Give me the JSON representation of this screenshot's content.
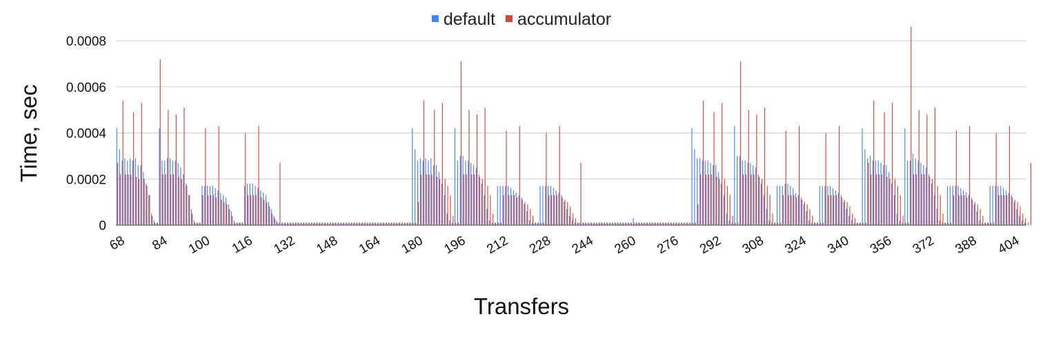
{
  "chart_data": {
    "type": "bar",
    "title": "",
    "xlabel": "Transfers",
    "ylabel": "Time, sec",
    "ylim": [
      0,
      0.0008
    ],
    "ytick_labels": [
      "0",
      "0.0002",
      "0.0004",
      "0.0006",
      "0.0008"
    ],
    "x_start": 68,
    "x_end": 417,
    "xtick_labels": [
      "68",
      "84",
      "100",
      "116",
      "132",
      "148",
      "164",
      "180",
      "196",
      "212",
      "228",
      "244",
      "260",
      "276",
      "292",
      "308",
      "324",
      "340",
      "356",
      "372",
      "388",
      "404"
    ],
    "grid": true,
    "legend_position": "top",
    "colors": {
      "default": "#4285f4",
      "accumulator": "#db4437"
    },
    "series": [
      {
        "name": "default",
        "values": [
          0.00042,
          0.00033,
          0.00028,
          0.00029,
          0.00028,
          0.00029,
          0.00028,
          0.00029,
          0.00026,
          0.00026,
          0.00023,
          0.00018,
          0.00013,
          5e-05,
          2e-05,
          1e-05,
          0.00042,
          0.00028,
          0.00028,
          0.00029,
          0.00029,
          0.00028,
          0.00028,
          0.00027,
          0.00025,
          0.00022,
          0.00018,
          0.00013,
          7e-05,
          2e-05,
          1e-05,
          1e-05,
          0.00017,
          0.00017,
          0.00017,
          0.00017,
          0.00017,
          0.00016,
          0.00015,
          0.00014,
          0.00013,
          0.00012,
          9e-05,
          6e-05,
          2e-05,
          1e-05,
          1e-05,
          1e-05,
          0.00017,
          0.00018,
          0.00018,
          0.00018,
          0.00017,
          0.00016,
          0.00015,
          0.00014,
          0.00013,
          0.0001,
          7e-05,
          4e-05,
          2e-05,
          1e-05,
          1e-05,
          1e-05,
          1e-05,
          1e-05,
          1e-05,
          1e-05,
          1e-05,
          1e-05,
          1e-05,
          1e-05,
          1e-05,
          1e-05,
          1e-05,
          1e-05,
          1e-05,
          1e-05,
          1e-05,
          1e-05,
          1e-05,
          1e-05,
          1e-05,
          1e-05,
          1e-05,
          1e-05,
          1e-05,
          1e-05,
          1e-05,
          1e-05,
          1e-05,
          1e-05,
          1e-05,
          1e-05,
          1e-05,
          1e-05,
          1e-05,
          1e-05,
          1e-05,
          1e-05,
          1e-05,
          1e-05,
          1e-05,
          1e-05,
          1e-05,
          1e-05,
          1e-05,
          1e-05,
          1e-05,
          1e-05,
          1e-05,
          0.00042,
          0.00033,
          0.00028,
          0.00029,
          0.00028,
          0.00029,
          0.00028,
          0.00029,
          0.00026,
          0.00026,
          0.00023,
          0.00018,
          0.00013,
          5e-05,
          2e-05,
          1e-05,
          0.00042,
          0.00028,
          0.0003,
          0.0003,
          0.00028,
          0.00028,
          0.00027,
          0.00026,
          0.00025,
          0.00022,
          0.00018,
          0.00013,
          7e-05,
          2e-05,
          1e-05,
          1e-05,
          0.00017,
          0.00017,
          0.00017,
          0.00017,
          0.00017,
          0.00016,
          0.00015,
          0.00014,
          0.00013,
          0.00012,
          9e-05,
          6e-05,
          2e-05,
          1e-05,
          1e-05,
          1e-05,
          0.00017,
          0.00017,
          0.00017,
          0.00017,
          0.00017,
          0.00016,
          0.00015,
          0.00014,
          0.00013,
          0.0001,
          7e-05,
          4e-05,
          2e-05,
          1e-05,
          1e-05,
          1e-05,
          1e-05,
          1e-05,
          1e-05,
          1e-05,
          1e-05,
          1e-05,
          1e-05,
          1e-05,
          1e-05,
          1e-05,
          1e-05,
          1e-05,
          1e-05,
          1e-05,
          1e-05,
          1e-05,
          1e-05,
          1e-05,
          1e-05,
          3e-05,
          1e-05,
          1e-05,
          1e-05,
          1e-05,
          1e-05,
          1e-05,
          1e-05,
          1e-05,
          1e-05,
          1e-05,
          1e-05,
          1e-05,
          1e-05,
          1e-05,
          1e-05,
          1e-05,
          1e-05,
          1e-05,
          1e-05,
          1e-05,
          1e-05,
          0.00042,
          0.00033,
          0.00029,
          0.00029,
          0.00028,
          0.00028,
          0.00028,
          0.00027,
          0.00026,
          0.00026,
          0.00023,
          0.00018,
          0.00013,
          5e-05,
          2e-05,
          1e-05,
          0.00043,
          0.0003,
          0.0003,
          0.00028,
          0.00028,
          0.00027,
          0.00027,
          0.00026,
          0.00025,
          0.00022,
          0.00018,
          0.00013,
          7e-05,
          2e-05,
          1e-05,
          1e-05,
          0.00017,
          0.00017,
          0.00017,
          0.00018,
          0.00018,
          0.00017,
          0.00016,
          0.00014,
          0.00013,
          0.00012,
          9e-05,
          6e-05,
          2e-05,
          1e-05,
          1e-05,
          1e-05,
          0.00017,
          0.00017,
          0.00017,
          0.00017,
          0.00017,
          0.00016,
          0.00015,
          0.00014,
          0.00013,
          0.0001,
          7e-05,
          4e-05,
          2e-05,
          1e-05,
          1e-05,
          1e-05,
          0.00042,
          0.00033,
          0.00029,
          0.0003,
          0.00028,
          0.00028,
          0.00028,
          0.00027,
          0.00026,
          0.00026,
          0.00023,
          0.00018,
          0.00013,
          5e-05,
          2e-05,
          1e-05,
          0.00042,
          0.00028,
          0.00028,
          0.00031,
          0.00029,
          0.00028,
          0.00027,
          0.00026,
          0.00025,
          0.00022,
          0.00018,
          0.00013,
          7e-05,
          2e-05,
          1e-05,
          1e-05,
          0.00017,
          0.00017,
          0.00017,
          0.00017,
          0.00017,
          0.00016,
          0.00015,
          0.00014,
          0.00013,
          0.00012,
          9e-05,
          6e-05,
          2e-05,
          1e-05,
          1e-05,
          1e-05,
          0.00017,
          0.00017,
          0.00017,
          0.00017,
          0.00017,
          0.00016,
          0.00015,
          0.00014,
          0.00013,
          0.0001,
          7e-05,
          4e-05,
          2e-05,
          1e-05
        ]
      },
      {
        "name": "accumulator",
        "values": [
          0.00027,
          0.00022,
          0.00054,
          0.00022,
          0.00022,
          0.00022,
          0.00049,
          0.00021,
          0.0002,
          0.00053,
          0.0002,
          0.00017,
          0.00013,
          4e-05,
          1e-05,
          1e-05,
          0.00072,
          0.00022,
          0.00022,
          0.0005,
          0.00022,
          0.00022,
          0.00048,
          0.00021,
          0.0002,
          0.00051,
          0.00017,
          0.00013,
          5e-05,
          1e-05,
          1e-05,
          1e-05,
          0.00013,
          0.00042,
          0.00013,
          0.00013,
          0.00013,
          0.00012,
          0.00043,
          0.00011,
          0.0001,
          9e-05,
          7e-05,
          4e-05,
          1e-05,
          1e-05,
          1e-05,
          1e-05,
          0.0004,
          0.00013,
          0.00013,
          0.00013,
          0.00013,
          0.00043,
          0.00012,
          0.00011,
          0.0001,
          8e-05,
          5e-05,
          3e-05,
          1e-05,
          0.00027,
          1e-05,
          1e-05,
          1e-05,
          1e-05,
          1e-05,
          1e-05,
          1e-05,
          1e-05,
          1e-05,
          1e-05,
          1e-05,
          1e-05,
          1e-05,
          1e-05,
          1e-05,
          1e-05,
          1e-05,
          1e-05,
          1e-05,
          1e-05,
          1e-05,
          1e-05,
          1e-05,
          1e-05,
          1e-05,
          1e-05,
          1e-05,
          1e-05,
          1e-05,
          1e-05,
          1e-05,
          1e-05,
          1e-05,
          1e-05,
          1e-05,
          1e-05,
          1e-05,
          1e-05,
          1e-05,
          1e-05,
          1e-05,
          1e-05,
          1e-05,
          1e-05,
          1e-05,
          1e-05,
          1e-05,
          1e-05,
          1e-05,
          1e-05,
          1e-05,
          0.0001,
          0.00022,
          0.00054,
          0.00022,
          0.00022,
          0.00022,
          0.0005,
          0.00021,
          0.0002,
          0.00053,
          0.0002,
          0.00017,
          0.00013,
          4e-05,
          1e-05,
          1e-05,
          0.00071,
          0.00022,
          0.00022,
          0.0005,
          0.00022,
          0.00022,
          0.00048,
          0.00021,
          0.0002,
          0.00051,
          0.00017,
          0.00013,
          5e-05,
          1e-05,
          1e-05,
          1e-05,
          0.00013,
          0.00041,
          0.00013,
          0.00013,
          0.00013,
          0.00012,
          0.00043,
          0.00011,
          0.0001,
          9e-05,
          7e-05,
          4e-05,
          1e-05,
          1e-05,
          1e-05,
          1e-05,
          0.0004,
          0.00013,
          0.00013,
          0.00013,
          0.00013,
          0.00043,
          0.00012,
          0.00011,
          0.0001,
          8e-05,
          5e-05,
          3e-05,
          1e-05,
          0.00027,
          1e-05,
          1e-05,
          1e-05,
          1e-05,
          1e-05,
          1e-05,
          1e-05,
          1e-05,
          1e-05,
          1e-05,
          1e-05,
          1e-05,
          1e-05,
          1e-05,
          1e-05,
          1e-05,
          1e-05,
          1e-05,
          1e-05,
          1e-05,
          1e-05,
          1e-05,
          1e-05,
          1e-05,
          1e-05,
          1e-05,
          1e-05,
          1e-05,
          1e-05,
          1e-05,
          1e-05,
          1e-05,
          1e-05,
          1e-05,
          1e-05,
          1e-05,
          1e-05,
          1e-05,
          1e-05,
          1e-05,
          1e-05,
          1e-05,
          1e-05,
          9e-05,
          0.00022,
          0.00054,
          0.00022,
          0.00022,
          0.00022,
          0.00049,
          0.00021,
          0.0002,
          0.00053,
          0.0002,
          0.00017,
          0.00013,
          4e-05,
          1e-05,
          1e-05,
          0.00071,
          0.00022,
          0.00022,
          0.0005,
          0.00022,
          0.00022,
          0.00048,
          0.00021,
          0.0002,
          0.00051,
          0.00017,
          0.00013,
          5e-05,
          1e-05,
          1e-05,
          1e-05,
          0.00013,
          0.00041,
          0.00013,
          0.00013,
          0.00013,
          0.00012,
          0.00043,
          0.00011,
          0.0001,
          9e-05,
          7e-05,
          4e-05,
          1e-05,
          1e-05,
          1e-05,
          1e-05,
          0.0004,
          0.00013,
          0.00013,
          0.00013,
          0.00013,
          0.00043,
          0.00012,
          0.00011,
          0.0001,
          8e-05,
          5e-05,
          3e-05,
          1e-05,
          1e-05,
          1e-05,
          1e-05,
          0.00027,
          0.00022,
          0.00054,
          0.00022,
          0.00022,
          0.00022,
          0.00049,
          0.00021,
          0.0002,
          0.00053,
          0.0002,
          0.00017,
          0.00013,
          4e-05,
          1e-05,
          1e-05,
          0.00086,
          0.00022,
          0.00022,
          0.0005,
          0.00022,
          0.00022,
          0.00048,
          0.00021,
          0.0002,
          0.00051,
          0.00017,
          0.00013,
          5e-05,
          1e-05,
          1e-05,
          1e-05,
          0.00013,
          0.00041,
          0.00013,
          0.00013,
          0.00013,
          0.00012,
          0.00043,
          0.00011,
          0.0001,
          9e-05,
          7e-05,
          4e-05,
          1e-05,
          1e-05,
          1e-05,
          1e-05,
          0.0004,
          0.00013,
          0.00013,
          0.00013,
          0.00013,
          0.00043,
          0.00012,
          0.00011,
          0.0001,
          8e-05,
          5e-05,
          3e-05,
          1e-05,
          0.00027
        ]
      }
    ]
  }
}
